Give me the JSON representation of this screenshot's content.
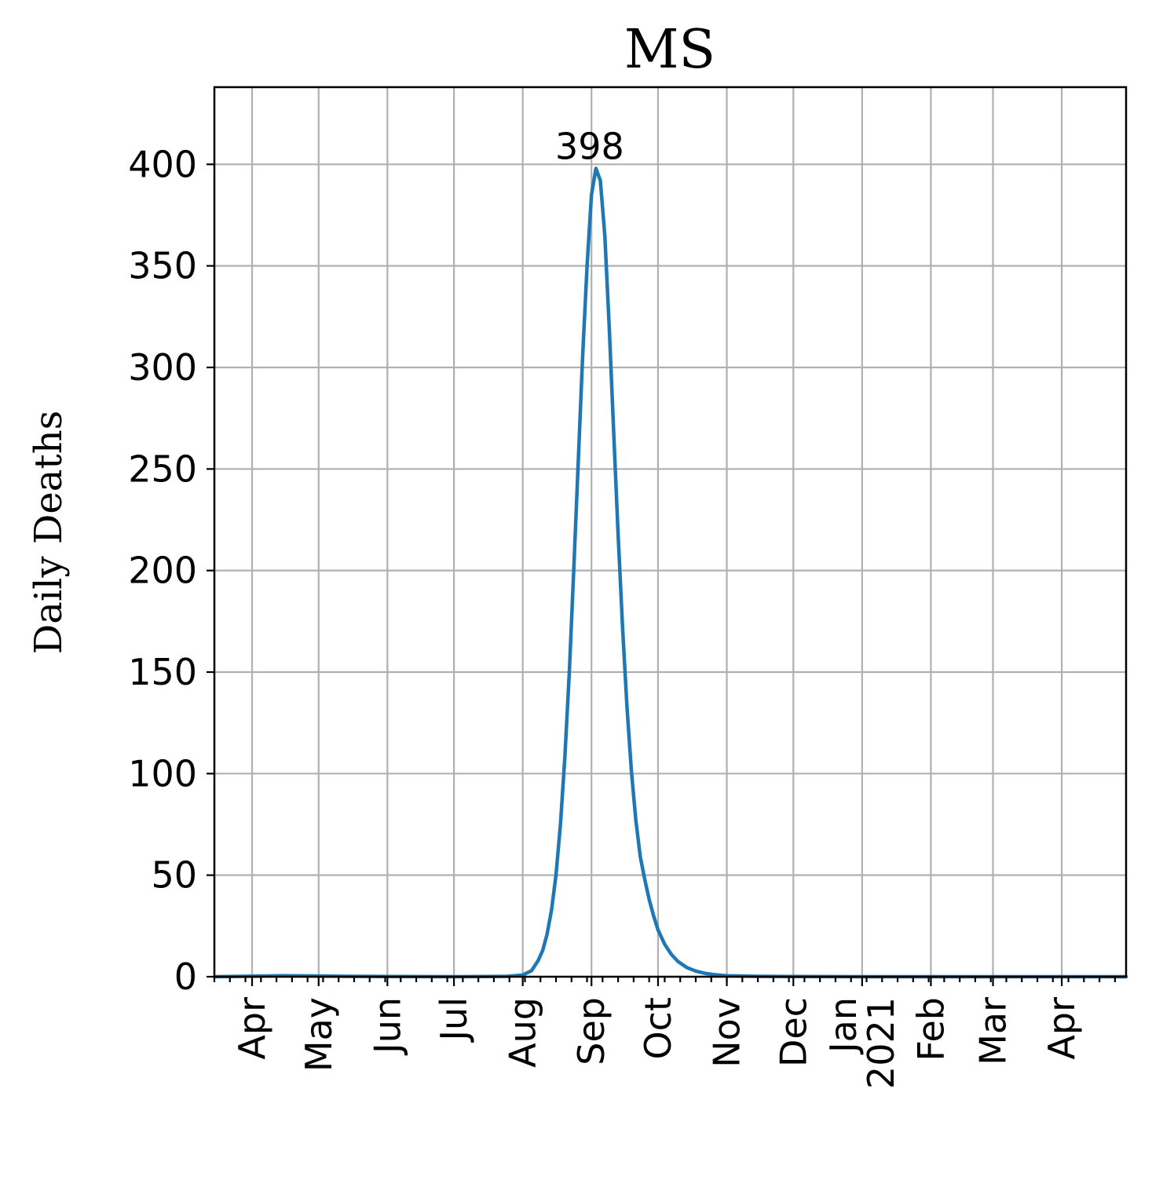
{
  "chart_data": {
    "type": "line",
    "title": "MS",
    "xlabel": "",
    "ylabel": "Daily Deaths",
    "ylim": [
      0,
      438
    ],
    "xlim": [
      "2020-03-15",
      "2021-04-30"
    ],
    "yticks": [
      0,
      50,
      100,
      150,
      200,
      250,
      300,
      350,
      400
    ],
    "xticks": [
      {
        "date": "2020-04-01",
        "label": "Apr"
      },
      {
        "date": "2020-05-01",
        "label": "May"
      },
      {
        "date": "2020-06-01",
        "label": "Jun"
      },
      {
        "date": "2020-07-01",
        "label": "Jul"
      },
      {
        "date": "2020-08-01",
        "label": "Aug"
      },
      {
        "date": "2020-09-01",
        "label": "Sep"
      },
      {
        "date": "2020-10-01",
        "label": "Oct"
      },
      {
        "date": "2020-11-01",
        "label": "Nov"
      },
      {
        "date": "2020-12-01",
        "label": "Dec"
      },
      {
        "date": "2021-01-01",
        "label": "Jan\n2021"
      },
      {
        "date": "2021-02-01",
        "label": "Feb"
      },
      {
        "date": "2021-03-01",
        "label": "Mar"
      },
      {
        "date": "2021-04-01",
        "label": "Apr"
      }
    ],
    "grid": true,
    "series": [
      {
        "color": "#1f77b4",
        "x": [
          "2020-03-15",
          "2020-04-15",
          "2020-05-15",
          "2020-07-01",
          "2020-07-25",
          "2020-08-01",
          "2020-08-05",
          "2020-08-08",
          "2020-08-10",
          "2020-08-12",
          "2020-08-14",
          "2020-08-16",
          "2020-08-18",
          "2020-08-20",
          "2020-08-22",
          "2020-08-24",
          "2020-08-26",
          "2020-08-28",
          "2020-08-30",
          "2020-09-01",
          "2020-09-03",
          "2020-09-05",
          "2020-09-07",
          "2020-09-09",
          "2020-09-11",
          "2020-09-13",
          "2020-09-15",
          "2020-09-17",
          "2020-09-19",
          "2020-09-21",
          "2020-09-23",
          "2020-09-25",
          "2020-09-27",
          "2020-09-29",
          "2020-10-01",
          "2020-10-04",
          "2020-10-07",
          "2020-10-10",
          "2020-10-14",
          "2020-10-18",
          "2020-10-22",
          "2020-10-26",
          "2020-11-01",
          "2020-11-15",
          "2020-12-01",
          "2021-01-01",
          "2021-04-30"
        ],
        "y": [
          0,
          0.5,
          0.2,
          0,
          0.2,
          0.8,
          3,
          8,
          13,
          21,
          33,
          50,
          75,
          108,
          150,
          200,
          253,
          305,
          350,
          385,
          398,
          392,
          365,
          320,
          268,
          218,
          172,
          133,
          101,
          77,
          59,
          48,
          38,
          30,
          23,
          16,
          11,
          7.5,
          4.5,
          2.8,
          1.7,
          1.1,
          0.5,
          0.2,
          0.1,
          0,
          0
        ]
      }
    ],
    "annotations": [
      {
        "text": "398",
        "x": "2020-09-03",
        "y": 398
      }
    ]
  }
}
